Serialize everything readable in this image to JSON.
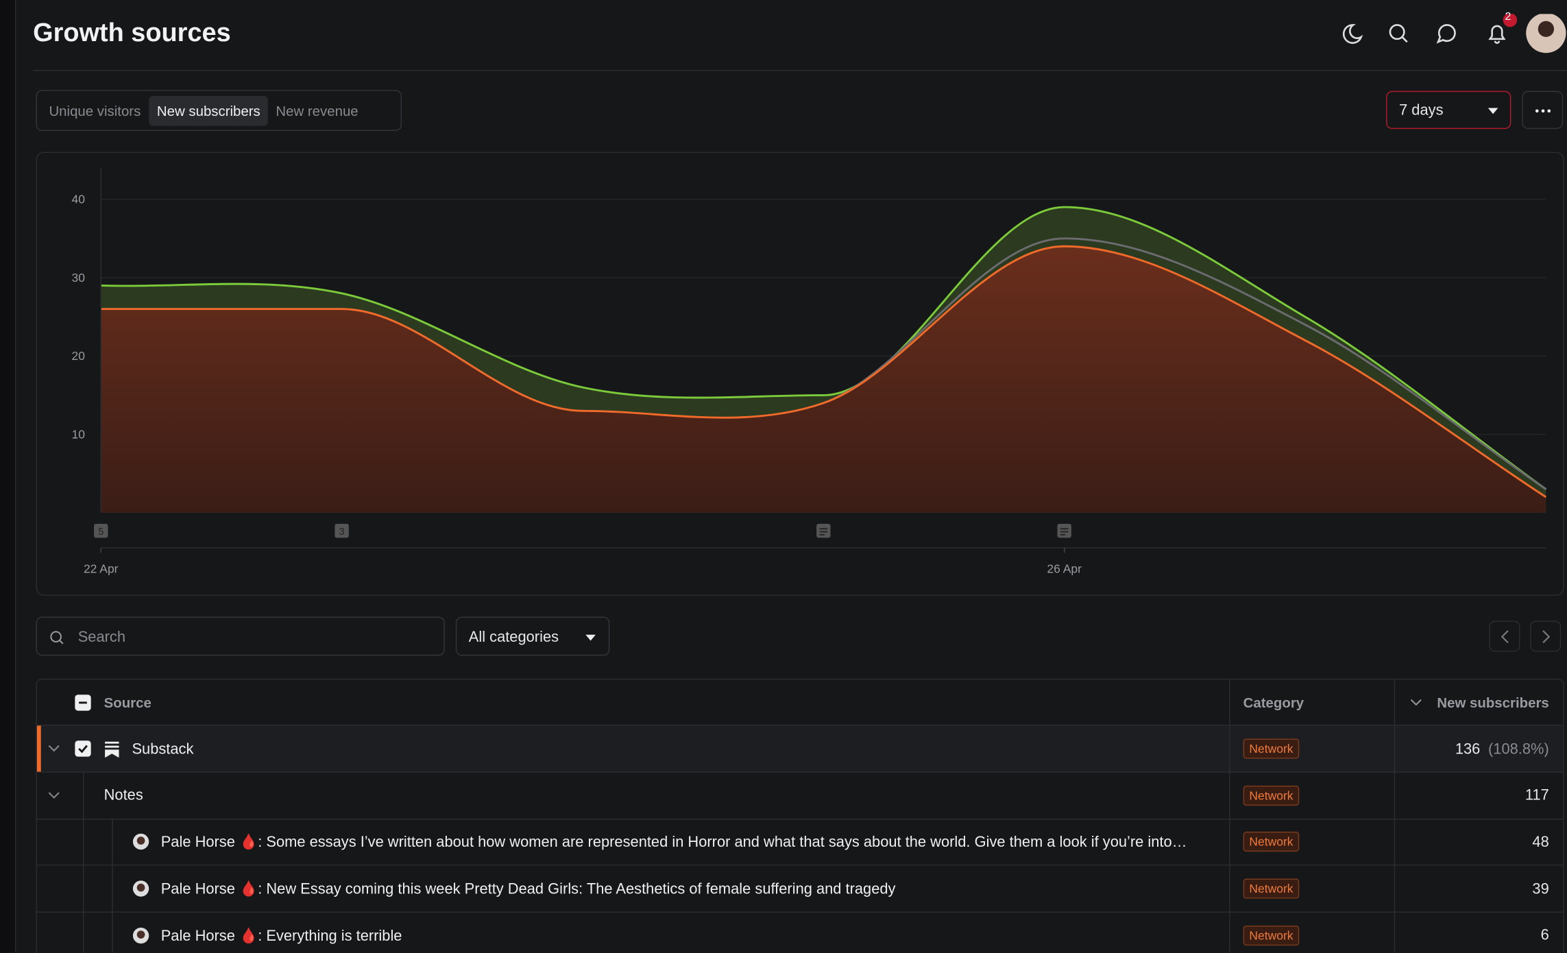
{
  "header": {
    "title": "Growth sources",
    "notification_count": "2"
  },
  "tabs": {
    "items": [
      "Unique visitors",
      "New subscribers",
      "New revenue"
    ],
    "active": 1
  },
  "period": "7 days",
  "chart_data": {
    "type": "area",
    "categories": [
      "22 Apr",
      null,
      null,
      null,
      "26 Apr",
      null,
      null
    ],
    "series": [
      {
        "color": "#7ccb3a",
        "values": [
          29,
          28,
          16,
          15,
          39,
          25,
          3
        ]
      },
      {
        "color": "#6b6b70",
        "values": [
          26,
          26,
          13,
          14,
          35,
          24,
          3
        ]
      },
      {
        "color": "#f06a2a",
        "values": [
          26,
          26,
          13,
          14,
          34,
          22,
          2
        ]
      }
    ],
    "ylim": [
      0,
      44
    ],
    "yticks": [
      10,
      20,
      30,
      40
    ],
    "grid": true,
    "post_markers": [
      "5",
      "3",
      null,
      null,
      null,
      null,
      null
    ]
  },
  "filters": {
    "search_placeholder": "Search",
    "category": "All categories"
  },
  "table": {
    "columns": [
      "Source",
      "Category",
      "New subscribers"
    ],
    "rows": [
      {
        "source": "Substack",
        "category": "Network",
        "value": 136,
        "share": "(108.8%)",
        "children": [
          {
            "source": "Notes",
            "category": "Network",
            "value": 117,
            "children": [
              {
                "source": "Pale Horse 🩸: Some essays I’ve written about how women are represented in Horror and what that says about the world. Give them a look if you’re into…",
                "category": "Network",
                "value": 48
              },
              {
                "source": "Pale Horse 🩸: New Essay coming this week Pretty Dead Girls: The Aesthetics of female suffering and tragedy",
                "category": "Network",
                "value": 39
              },
              {
                "source": "Pale Horse 🩸: Everything is terrible",
                "category": "Network",
                "value": 6
              }
            ]
          }
        ]
      }
    ]
  }
}
